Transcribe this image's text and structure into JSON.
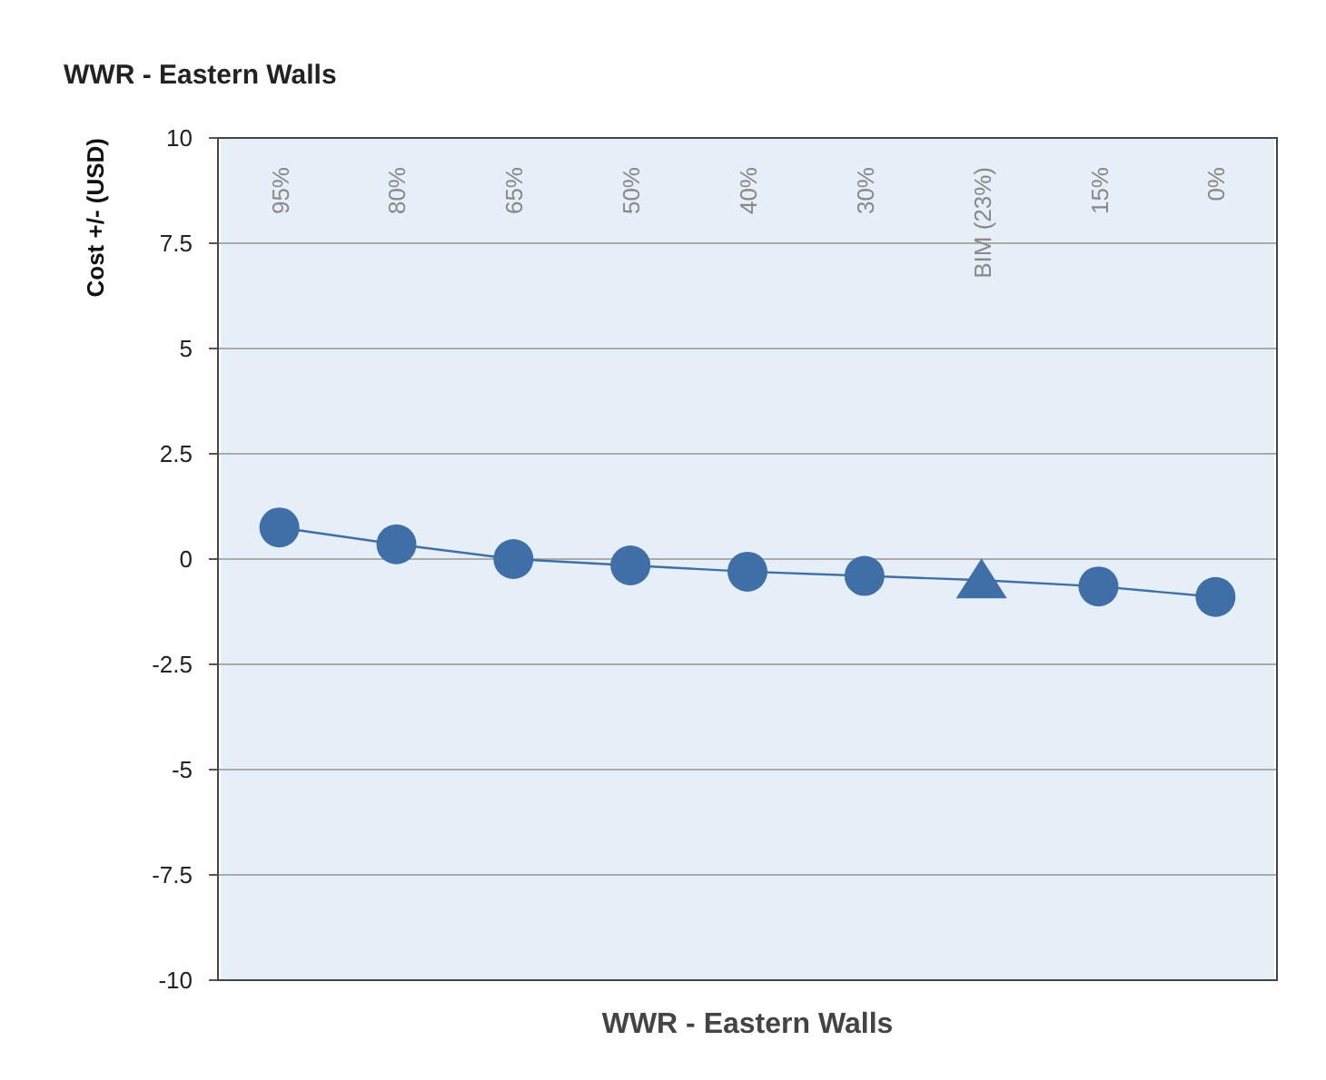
{
  "chart_data": {
    "type": "line",
    "title": "WWR - Eastern Walls",
    "xlabel": "WWR - Eastern Walls",
    "ylabel": "Cost +/- (USD)",
    "categories": [
      "95%",
      "80%",
      "65%",
      "50%",
      "40%",
      "30%",
      "BIM (23%)",
      "15%",
      "0%"
    ],
    "series": [
      {
        "type": "line",
        "color": "#3f6fa6",
        "marker": "none",
        "values": [
          0.75,
          0.35,
          0,
          -0.15,
          -0.3,
          -0.4,
          -0.5,
          -0.65,
          -0.9
        ]
      },
      {
        "type": "scatter",
        "color": "#3f6fa6",
        "marker": "circle",
        "values": [
          0.75,
          0.35,
          0,
          -0.15,
          -0.3,
          -0.4,
          null,
          -0.65,
          -0.9
        ]
      },
      {
        "type": "scatter",
        "color": "#3f6fa6",
        "marker": "triangle",
        "x": [
          "BIM (23%)"
        ],
        "values": [
          -0.5
        ]
      }
    ],
    "ylim": [
      -10,
      10
    ],
    "yticks": [
      -10,
      {
        "value": -7.5,
        "label": "-7.5"
      },
      -5,
      {
        "value": -2.5,
        "label": "-2.5"
      },
      0,
      {
        "value": 2.5,
        "label": "2.5"
      },
      5,
      {
        "value": 7.5,
        "label": "7.5"
      },
      10
    ],
    "grid": "y",
    "bands": [
      {
        "axis": "x",
        "from": "95%",
        "to": "0%",
        "color": "#e6eef7"
      }
    ]
  }
}
